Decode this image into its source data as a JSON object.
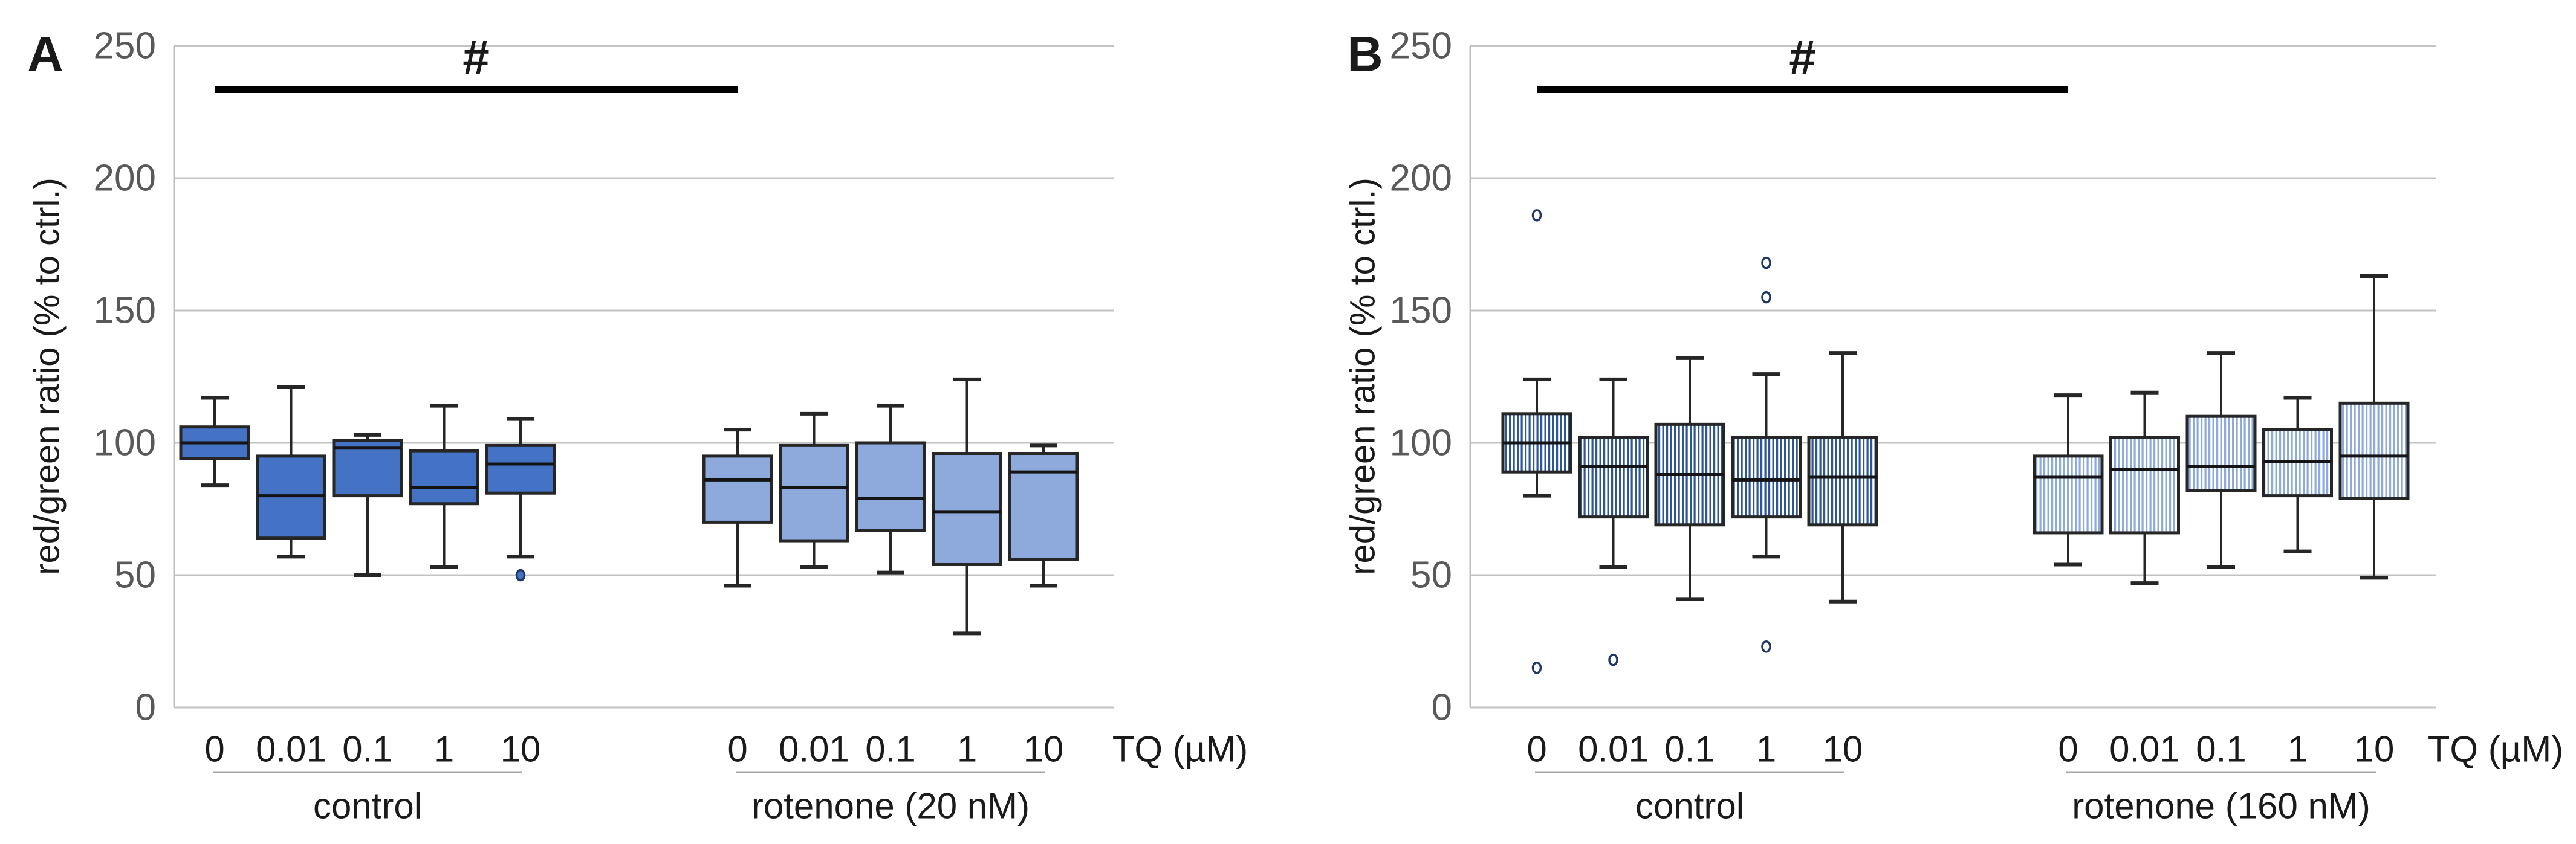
{
  "figure_colors": {
    "background": "#FFFFFF",
    "gridline": "#C3C3C3",
    "axis_line": "#BFBFBF",
    "underline": "#A6A6A6",
    "tick_text": "#595959",
    "text": "#1A1A1A",
    "sig_bar": "#000000",
    "box_border": "#262626",
    "median_line": "#141414",
    "box_fill_dark": "#4472C4",
    "box_fill_light": "#8EAADC",
    "stripe_dark": "#2E5597",
    "stripe_light": "#8EAADC",
    "outlier_ring": "#1F3864"
  },
  "chart_data": [
    {
      "type": "boxplot",
      "panel_label": "A",
      "ylabel": "red/green ratio (% to ctrl.)",
      "x_unit_label": "TQ (µM)",
      "ylim": [
        0,
        250
      ],
      "y_ticks": [
        0,
        50,
        100,
        150,
        200,
        250
      ],
      "grid": "horizontal",
      "significance": {
        "symbol": "#",
        "from_group": 0,
        "from_index": 0,
        "to_group": 1,
        "to_index": 0
      },
      "groups": [
        {
          "name": "control",
          "style": "solid-dark",
          "outlier_style": "filled",
          "categories": [
            "0",
            "0.01",
            "0.1",
            "1",
            "10"
          ],
          "boxes": [
            {
              "low": 84,
              "q1": 94,
              "median": 100,
              "q3": 106,
              "high": 117,
              "outliers": []
            },
            {
              "low": 57,
              "q1": 64,
              "median": 80,
              "q3": 95,
              "high": 121,
              "outliers": []
            },
            {
              "low": 50,
              "q1": 80,
              "median": 98,
              "q3": 101,
              "high": 103,
              "outliers": []
            },
            {
              "low": 53,
              "q1": 77,
              "median": 83,
              "q3": 97,
              "high": 114,
              "outliers": []
            },
            {
              "low": 57,
              "q1": 81,
              "median": 92,
              "q3": 99,
              "high": 109,
              "outliers": [
                50
              ]
            }
          ]
        },
        {
          "name": "rotenone (20 nM)",
          "style": "solid-light",
          "outlier_style": "filled",
          "categories": [
            "0",
            "0.01",
            "0.1",
            "1",
            "10"
          ],
          "boxes": [
            {
              "low": 46,
              "q1": 70,
              "median": 86,
              "q3": 95,
              "high": 105,
              "outliers": []
            },
            {
              "low": 53,
              "q1": 63,
              "median": 83,
              "q3": 99,
              "high": 111,
              "outliers": []
            },
            {
              "low": 51,
              "q1": 67,
              "median": 79,
              "q3": 100,
              "high": 114,
              "outliers": []
            },
            {
              "low": 28,
              "q1": 54,
              "median": 74,
              "q3": 96,
              "high": 124,
              "outliers": []
            },
            {
              "low": 46,
              "q1": 56,
              "median": 89,
              "q3": 96,
              "high": 99,
              "outliers": []
            }
          ]
        }
      ]
    },
    {
      "type": "boxplot",
      "panel_label": "B",
      "ylabel": "red/green ratio (% to ctrl.)",
      "x_unit_label": "TQ (µM)",
      "ylim": [
        0,
        250
      ],
      "y_ticks": [
        0,
        50,
        100,
        150,
        200,
        250
      ],
      "grid": "horizontal",
      "significance": {
        "symbol": "#",
        "from_group": 0,
        "from_index": 0,
        "to_group": 1,
        "to_index": 0
      },
      "groups": [
        {
          "name": "control",
          "style": "stripe-dark",
          "outlier_style": "open",
          "categories": [
            "0",
            "0.01",
            "0.1",
            "1",
            "10"
          ],
          "boxes": [
            {
              "low": 80,
              "q1": 89,
              "median": 100,
              "q3": 111,
              "high": 124,
              "outliers": [
                186,
                15
              ]
            },
            {
              "low": 53,
              "q1": 72,
              "median": 91,
              "q3": 102,
              "high": 124,
              "outliers": [
                18
              ]
            },
            {
              "low": 41,
              "q1": 69,
              "median": 88,
              "q3": 107,
              "high": 132,
              "outliers": []
            },
            {
              "low": 57,
              "q1": 72,
              "median": 86,
              "q3": 102,
              "high": 126,
              "outliers": [
                168,
                155,
                23
              ]
            },
            {
              "low": 40,
              "q1": 69,
              "median": 87,
              "q3": 102,
              "high": 134,
              "outliers": []
            }
          ]
        },
        {
          "name": "rotenone (160 nM)",
          "style": "stripe-light",
          "outlier_style": "open",
          "categories": [
            "0",
            "0.01",
            "0.1",
            "1",
            "10"
          ],
          "boxes": [
            {
              "low": 54,
              "q1": 66,
              "median": 87,
              "q3": 95,
              "high": 118,
              "outliers": []
            },
            {
              "low": 47,
              "q1": 66,
              "median": 90,
              "q3": 102,
              "high": 119,
              "outliers": []
            },
            {
              "low": 53,
              "q1": 82,
              "median": 91,
              "q3": 110,
              "high": 134,
              "outliers": []
            },
            {
              "low": 59,
              "q1": 80,
              "median": 93,
              "q3": 105,
              "high": 117,
              "outliers": []
            },
            {
              "low": 49,
              "q1": 79,
              "median": 95,
              "q3": 115,
              "high": 163,
              "outliers": []
            }
          ]
        }
      ]
    }
  ]
}
